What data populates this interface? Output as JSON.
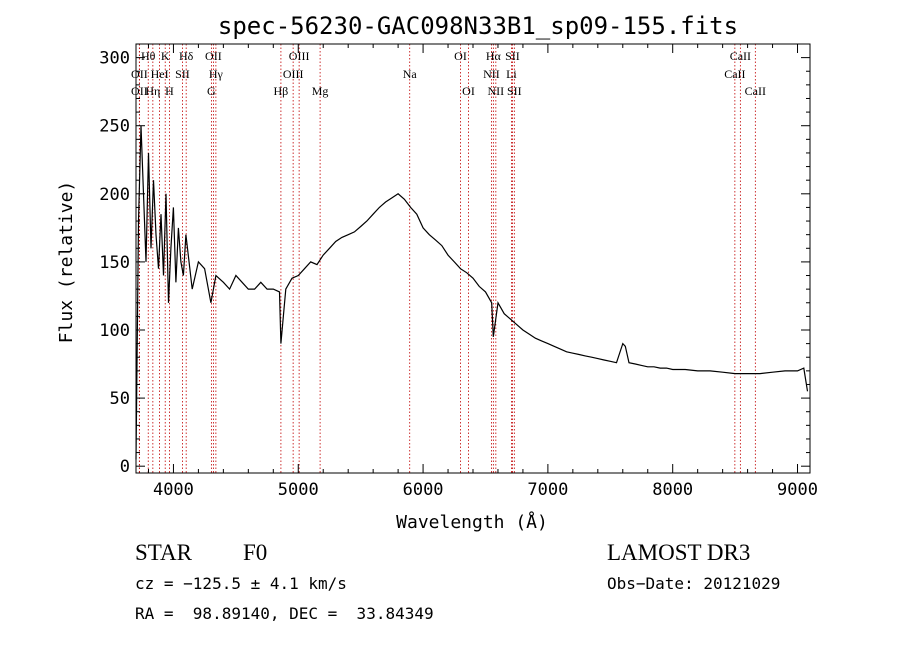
{
  "chart_data": {
    "type": "line",
    "title": "spec-56230-GAC098N33B1_sp09-155.fits",
    "xlabel": "Wavelength (Å)",
    "ylabel": "Flux (relative)",
    "xlim": [
      3700,
      9100
    ],
    "ylim": [
      -5,
      310
    ],
    "xticks": [
      4000,
      5000,
      6000,
      7000,
      8000,
      9000
    ],
    "xtick_labels": [
      "4000",
      "5000",
      "6000",
      "7000",
      "8000",
      "9000"
    ],
    "yticks": [
      0,
      50,
      100,
      150,
      200,
      250,
      300
    ],
    "ytick_labels": [
      "0",
      "50",
      "100",
      "150",
      "200",
      "250",
      "300"
    ],
    "series": [
      {
        "name": "flux",
        "x": [
          3700,
          3720,
          3740,
          3760,
          3780,
          3800,
          3820,
          3840,
          3860,
          3880,
          3900,
          3920,
          3940,
          3960,
          3980,
          4000,
          4020,
          4040,
          4060,
          4080,
          4100,
          4150,
          4200,
          4250,
          4300,
          4340,
          4400,
          4450,
          4500,
          4550,
          4600,
          4650,
          4700,
          4750,
          4800,
          4850,
          4861,
          4900,
          4950,
          5000,
          5050,
          5100,
          5150,
          5200,
          5250,
          5300,
          5350,
          5400,
          5450,
          5500,
          5550,
          5600,
          5650,
          5700,
          5750,
          5800,
          5850,
          5900,
          5950,
          6000,
          6050,
          6100,
          6150,
          6200,
          6250,
          6300,
          6350,
          6400,
          6450,
          6500,
          6550,
          6563,
          6600,
          6650,
          6700,
          6750,
          6800,
          6850,
          6900,
          6950,
          7000,
          7050,
          7100,
          7150,
          7200,
          7250,
          7300,
          7350,
          7400,
          7450,
          7500,
          7550,
          7600,
          7620,
          7650,
          7700,
          7750,
          7800,
          7850,
          7900,
          7950,
          8000,
          8100,
          8200,
          8300,
          8400,
          8500,
          8600,
          8700,
          8800,
          8900,
          9000,
          9050,
          9080
        ],
        "y": [
          5,
          180,
          250,
          200,
          150,
          230,
          160,
          210,
          170,
          145,
          185,
          140,
          200,
          120,
          160,
          190,
          135,
          175,
          150,
          140,
          170,
          130,
          150,
          145,
          120,
          140,
          135,
          130,
          140,
          135,
          130,
          130,
          135,
          130,
          130,
          128,
          90,
          130,
          138,
          140,
          145,
          150,
          148,
          155,
          160,
          165,
          168,
          170,
          172,
          176,
          180,
          185,
          190,
          194,
          197,
          200,
          196,
          190,
          185,
          175,
          170,
          166,
          162,
          155,
          150,
          145,
          142,
          138,
          132,
          128,
          120,
          95,
          120,
          112,
          108,
          104,
          100,
          97,
          94,
          92,
          90,
          88,
          86,
          84,
          83,
          82,
          81,
          80,
          79,
          78,
          77,
          76,
          90,
          88,
          76,
          75,
          74,
          73,
          73,
          72,
          72,
          71,
          71,
          70,
          70,
          69,
          68,
          68,
          68,
          69,
          70,
          70,
          72,
          55
        ]
      }
    ],
    "line_markers": [
      {
        "label": "Hθ",
        "x": 3798,
        "row": 0
      },
      {
        "label": "K",
        "x": 3934,
        "row": 0
      },
      {
        "label": "Hδ",
        "x": 4102,
        "row": 0
      },
      {
        "label": "OII",
        "x": 4320,
        "row": 0
      },
      {
        "label": "OIII",
        "x": 5007,
        "row": 0
      },
      {
        "label": "OI",
        "x": 6300,
        "row": 0
      },
      {
        "label": "Hα",
        "x": 6563,
        "row": 0
      },
      {
        "label": "SII",
        "x": 6716,
        "row": 0
      },
      {
        "label": "CaII",
        "x": 8542,
        "row": 0
      },
      {
        "label": "OII",
        "x": 3727,
        "row": 1
      },
      {
        "label": "HeI",
        "x": 3889,
        "row": 1
      },
      {
        "label": "SII",
        "x": 4072,
        "row": 1
      },
      {
        "label": "Hγ",
        "x": 4340,
        "row": 1
      },
      {
        "label": "OIII",
        "x": 4959,
        "row": 1
      },
      {
        "label": "Na",
        "x": 5893,
        "row": 1
      },
      {
        "label": "NII",
        "x": 6548,
        "row": 1
      },
      {
        "label": "Li",
        "x": 6708,
        "row": 1
      },
      {
        "label": "CaII",
        "x": 8498,
        "row": 1
      },
      {
        "label": "OII",
        "x": 3727,
        "row": 2
      },
      {
        "label": "Hη",
        "x": 3835,
        "row": 2
      },
      {
        "label": "H",
        "x": 3968,
        "row": 2
      },
      {
        "label": "G",
        "x": 4304,
        "row": 2
      },
      {
        "label": "Hβ",
        "x": 4861,
        "row": 2
      },
      {
        "label": "Mg",
        "x": 5175,
        "row": 2
      },
      {
        "label": "OI",
        "x": 6364,
        "row": 2
      },
      {
        "label": "NII",
        "x": 6583,
        "row": 2
      },
      {
        "label": "SII",
        "x": 6731,
        "row": 2
      },
      {
        "label": "CaII",
        "x": 8662,
        "row": 2
      }
    ]
  },
  "info": {
    "object_class": "STAR",
    "subclass": "F0",
    "survey": "LAMOST DR3",
    "cz": "cz = −125.5 ± 4.1 km/s",
    "obs_date": "Obs−Date: 20121029",
    "coords": "RA =  98.89140, DEC =  33.84349"
  },
  "colors": {
    "line": "#000000",
    "marker": "#c00000"
  }
}
